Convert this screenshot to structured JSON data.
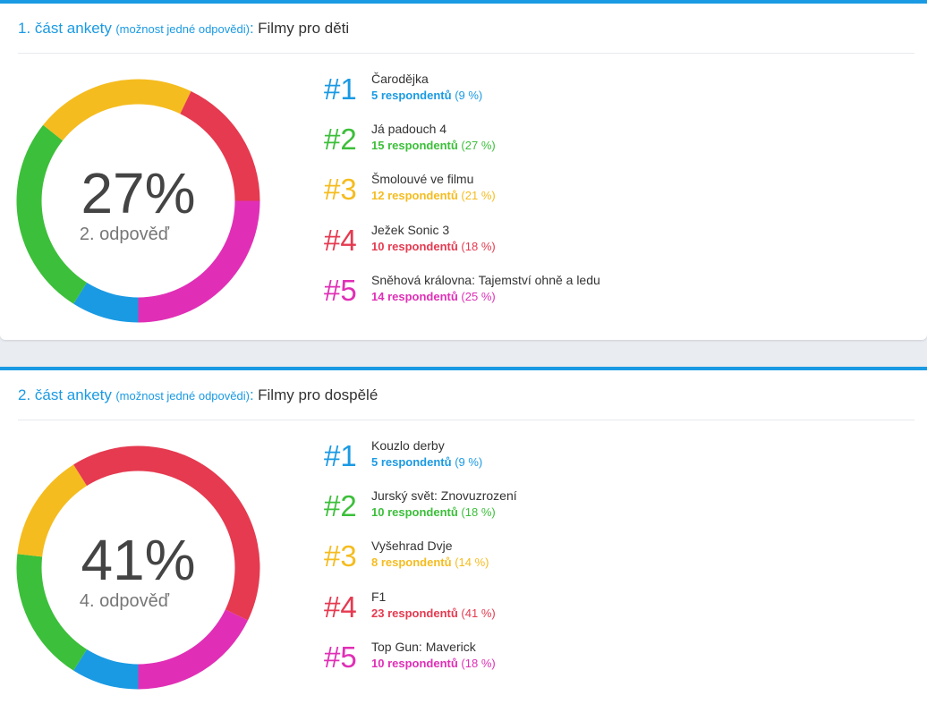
{
  "colors": [
    "#1a9ae3",
    "#3cbf3a",
    "#f5bc1f",
    "#e53a50",
    "#e02fb6"
  ],
  "polls": [
    {
      "header": {
        "part": "1. část ankety",
        "note": "(možnost jedné odpovědi)",
        "colon": ":",
        "title": "Filmy pro děti"
      },
      "center": {
        "percent": "27%",
        "label": "2. odpověď"
      },
      "items": [
        {
          "rank": "#1",
          "name": "Čarodějka",
          "count": "5 respondentů",
          "pct": "(9 %)"
        },
        {
          "rank": "#2",
          "name": "Já padouch 4",
          "count": "15 respondentů",
          "pct": "(27 %)"
        },
        {
          "rank": "#3",
          "name": "Šmolouvé ve filmu",
          "count": "12 respondentů",
          "pct": "(21 %)"
        },
        {
          "rank": "#4",
          "name": "Ježek Sonic 3",
          "count": "10 respondentů",
          "pct": "(18 %)"
        },
        {
          "rank": "#5",
          "name": "Sněhová královna: Tajemství ohně a ledu",
          "count": "14 respondentů",
          "pct": "(25 %)"
        }
      ]
    },
    {
      "header": {
        "part": "2. část ankety",
        "note": "(možnost jedné odpovědi)",
        "colon": ":",
        "title": "Filmy pro dospělé"
      },
      "center": {
        "percent": "41%",
        "label": "4. odpověď"
      },
      "items": [
        {
          "rank": "#1",
          "name": "Kouzlo derby",
          "count": "5 respondentů",
          "pct": "(9 %)"
        },
        {
          "rank": "#2",
          "name": "Jurský svět: Znovuzrození",
          "count": "10 respondentů",
          "pct": "(18 %)"
        },
        {
          "rank": "#3",
          "name": "Vyšehrad Dvje",
          "count": "8 respondentů",
          "pct": "(14 %)"
        },
        {
          "rank": "#4",
          "name": "F1",
          "count": "23 respondentů",
          "pct": "(41 %)"
        },
        {
          "rank": "#5",
          "name": "Top Gun: Maverick",
          "count": "10 respondentů",
          "pct": "(18 %)"
        }
      ]
    }
  ],
  "chart_data": [
    {
      "type": "pie",
      "categories": [
        "Čarodějka",
        "Já padouch 4",
        "Šmolouvé ve filmu",
        "Ježek Sonic 3",
        "Sněhová královna: Tajemství ohně a ledu"
      ],
      "values": [
        5,
        15,
        12,
        10,
        14
      ],
      "colors": [
        "#1a9ae3",
        "#3cbf3a",
        "#f5bc1f",
        "#e53a50",
        "#e02fb6"
      ]
    },
    {
      "type": "pie",
      "categories": [
        "Kouzlo derby",
        "Jurský svět: Znovuzrození",
        "Vyšehrad Dvje",
        "F1",
        "Top Gun: Maverick"
      ],
      "values": [
        5,
        10,
        8,
        23,
        10
      ],
      "colors": [
        "#1a9ae3",
        "#3cbf3a",
        "#f5bc1f",
        "#e53a50",
        "#e02fb6"
      ]
    }
  ]
}
